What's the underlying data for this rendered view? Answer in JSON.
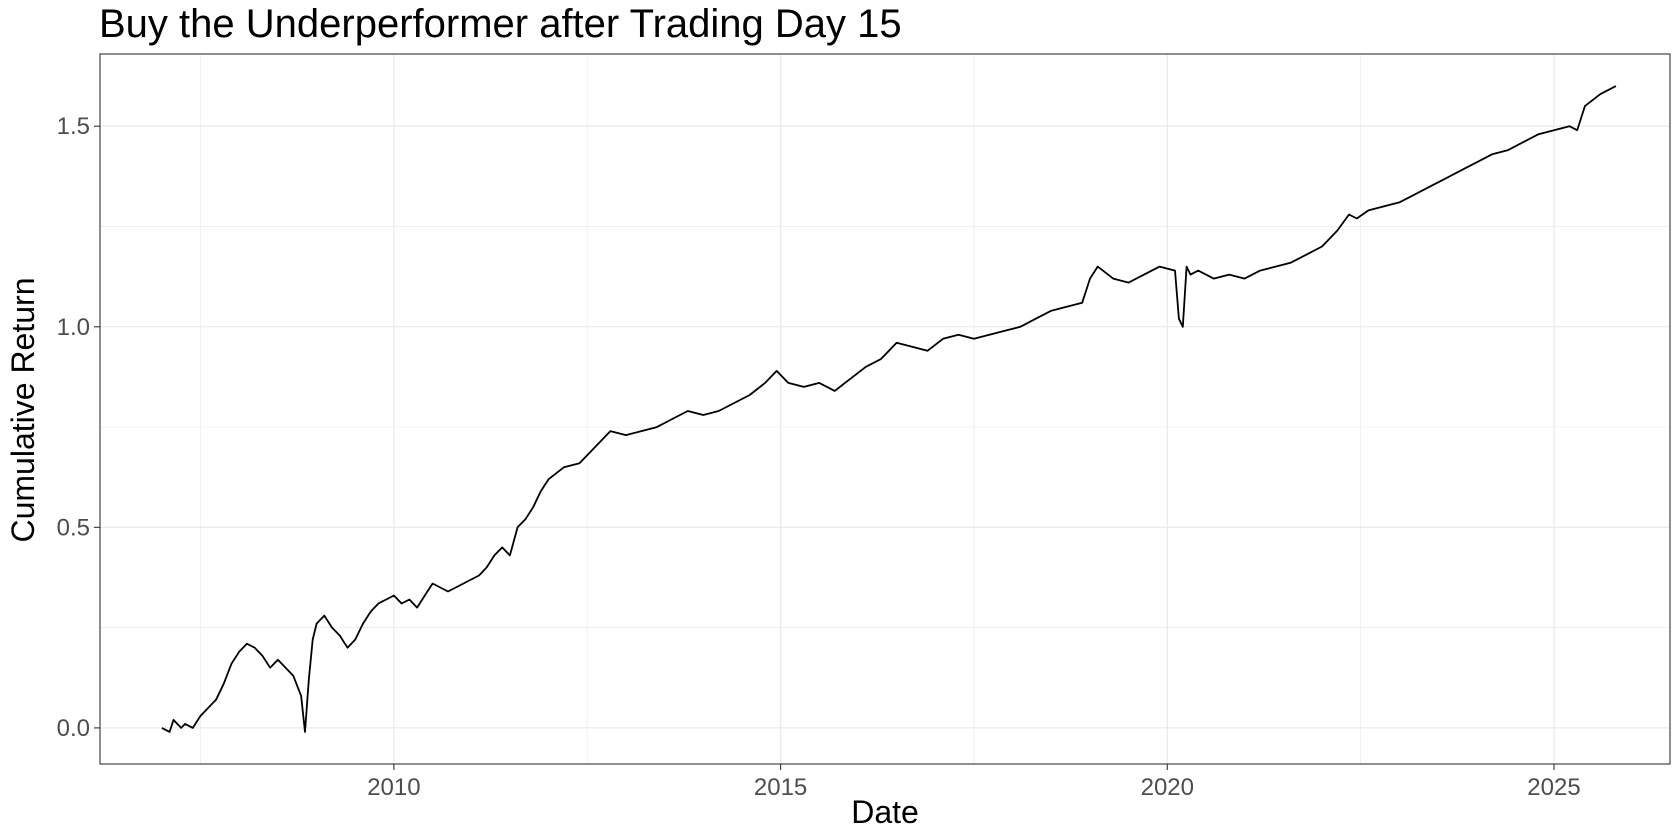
{
  "chart_data": {
    "type": "line",
    "title": "Buy the Underperformer after Trading Day 15",
    "xlabel": "Date",
    "ylabel": "Cumulative Return",
    "xlim": [
      2006.2,
      2026.5
    ],
    "ylim": [
      -0.09,
      1.68
    ],
    "x_ticks": [
      2010,
      2015,
      2020,
      2025
    ],
    "x_tick_labels": [
      "2010",
      "2015",
      "2020",
      "2025"
    ],
    "x_minor_ticks": [
      2007.5,
      2012.5,
      2017.5,
      2022.5
    ],
    "y_ticks": [
      0.0,
      0.5,
      1.0,
      1.5
    ],
    "y_tick_labels": [
      "0.0",
      "0.5",
      "1.0",
      "1.5"
    ],
    "y_minor_ticks": [
      0.25,
      0.75,
      1.25
    ],
    "grid": true,
    "legend": "none",
    "colors": {
      "line": "#000000",
      "grid": "#ebebeb",
      "panel_border": "#333333",
      "tick_text": "#4d4d4d"
    },
    "series": [
      {
        "x": [
          2007.0,
          2007.1,
          2007.15,
          2007.2,
          2007.25,
          2007.3,
          2007.4,
          2007.5,
          2007.6,
          2007.7,
          2007.8,
          2007.9,
          2008.0,
          2008.1,
          2008.2,
          2008.3,
          2008.4,
          2008.5,
          2008.6,
          2008.7,
          2008.8,
          2008.85,
          2008.9,
          2008.95,
          2009.0,
          2009.1,
          2009.2,
          2009.3,
          2009.4,
          2009.5,
          2009.6,
          2009.7,
          2009.8,
          2009.9,
          2010.0,
          2010.1,
          2010.2,
          2010.3,
          2010.4,
          2010.5,
          2010.6,
          2010.7,
          2010.8,
          2010.9,
          2011.0,
          2011.1,
          2011.2,
          2011.3,
          2011.4,
          2011.5,
          2011.6,
          2011.7,
          2011.8,
          2011.9,
          2012.0,
          2012.2,
          2012.4,
          2012.6,
          2012.8,
          2013.0,
          2013.2,
          2013.4,
          2013.6,
          2013.8,
          2014.0,
          2014.2,
          2014.4,
          2014.6,
          2014.8,
          2014.95,
          2015.1,
          2015.3,
          2015.5,
          2015.7,
          2015.9,
          2016.1,
          2016.3,
          2016.5,
          2016.7,
          2016.9,
          2017.1,
          2017.3,
          2017.5,
          2017.7,
          2017.9,
          2018.1,
          2018.3,
          2018.5,
          2018.7,
          2018.9,
          2019.0,
          2019.1,
          2019.3,
          2019.5,
          2019.7,
          2019.9,
          2020.1,
          2020.15,
          2020.2,
          2020.25,
          2020.3,
          2020.4,
          2020.6,
          2020.8,
          2021.0,
          2021.2,
          2021.4,
          2021.6,
          2021.8,
          2022.0,
          2022.2,
          2022.35,
          2022.45,
          2022.6,
          2022.8,
          2023.0,
          2023.2,
          2023.4,
          2023.6,
          2023.8,
          2024.0,
          2024.2,
          2024.4,
          2024.6,
          2024.8,
          2025.0,
          2025.2,
          2025.3,
          2025.4,
          2025.6,
          2025.8
        ],
        "y": [
          0.0,
          -0.01,
          0.02,
          0.01,
          0.0,
          0.01,
          0.0,
          0.03,
          0.05,
          0.07,
          0.11,
          0.16,
          0.19,
          0.21,
          0.2,
          0.18,
          0.15,
          0.17,
          0.15,
          0.13,
          0.08,
          -0.01,
          0.12,
          0.22,
          0.26,
          0.28,
          0.25,
          0.23,
          0.2,
          0.22,
          0.26,
          0.29,
          0.31,
          0.32,
          0.33,
          0.31,
          0.32,
          0.3,
          0.33,
          0.36,
          0.35,
          0.34,
          0.35,
          0.36,
          0.37,
          0.38,
          0.4,
          0.43,
          0.45,
          0.43,
          0.5,
          0.52,
          0.55,
          0.59,
          0.62,
          0.65,
          0.66,
          0.7,
          0.74,
          0.73,
          0.74,
          0.75,
          0.77,
          0.79,
          0.78,
          0.79,
          0.81,
          0.83,
          0.86,
          0.89,
          0.86,
          0.85,
          0.86,
          0.84,
          0.87,
          0.9,
          0.92,
          0.96,
          0.95,
          0.94,
          0.97,
          0.98,
          0.97,
          0.98,
          0.99,
          1.0,
          1.02,
          1.04,
          1.05,
          1.06,
          1.12,
          1.15,
          1.12,
          1.11,
          1.13,
          1.15,
          1.14,
          1.02,
          1.0,
          1.15,
          1.13,
          1.14,
          1.12,
          1.13,
          1.12,
          1.14,
          1.15,
          1.16,
          1.18,
          1.2,
          1.24,
          1.28,
          1.27,
          1.29,
          1.3,
          1.31,
          1.33,
          1.35,
          1.37,
          1.39,
          1.41,
          1.43,
          1.44,
          1.46,
          1.48,
          1.49,
          1.5,
          1.49,
          1.55,
          1.58,
          1.6
        ]
      }
    ]
  }
}
